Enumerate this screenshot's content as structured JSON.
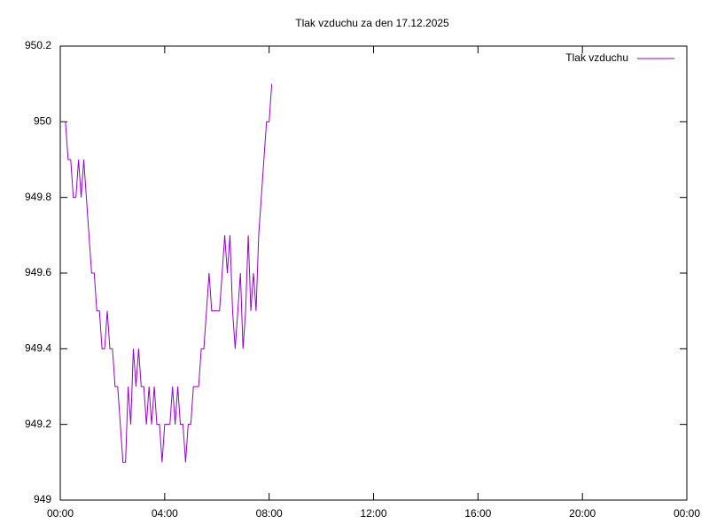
{
  "chart_data": {
    "type": "line",
    "title": "Tlak vzduchu za den 17.12.2025",
    "x": [
      0,
      0.1,
      0.2,
      0.3,
      0.4,
      0.5,
      0.6,
      0.7,
      0.8,
      0.9,
      1,
      1.1,
      1.2,
      1.3,
      1.4,
      1.5,
      1.6,
      1.7,
      1.8,
      1.9,
      2,
      2.1,
      2.2,
      2.3,
      2.4,
      2.5,
      2.6,
      2.7,
      2.8,
      2.9,
      3,
      3.1,
      3.2,
      3.3,
      3.4,
      3.5,
      3.6,
      3.7,
      3.8,
      3.9,
      4,
      4.1,
      4.2,
      4.3,
      4.4,
      4.5,
      4.6,
      4.7,
      4.8,
      4.9,
      5,
      5.1,
      5.2,
      5.3,
      5.4,
      5.5,
      5.6,
      5.7,
      5.8,
      5.9,
      6,
      6.1,
      6.2,
      6.3,
      6.4,
      6.5,
      6.6,
      6.7,
      6.8,
      6.9,
      7,
      7.1,
      7.2,
      7.3,
      7.4,
      7.5,
      7.6,
      7.7,
      7.8,
      7.9,
      8,
      8.1
    ],
    "series": [
      {
        "name": "Tlak vzduchu",
        "color": "#9400d3",
        "values": [
          950,
          950,
          950,
          949.9,
          949.9,
          949.8,
          949.8,
          949.9,
          949.8,
          949.9,
          949.8,
          949.7,
          949.6,
          949.6,
          949.5,
          949.5,
          949.4,
          949.4,
          949.5,
          949.4,
          949.4,
          949.3,
          949.3,
          949.2,
          949.1,
          949.1,
          949.3,
          949.2,
          949.4,
          949.3,
          949.4,
          949.3,
          949.3,
          949.2,
          949.3,
          949.2,
          949.3,
          949.2,
          949.2,
          949.1,
          949.2,
          949.2,
          949.2,
          949.3,
          949.2,
          949.3,
          949.2,
          949.2,
          949.1,
          949.2,
          949.2,
          949.3,
          949.3,
          949.3,
          949.4,
          949.4,
          949.5,
          949.6,
          949.5,
          949.5,
          949.5,
          949.5,
          949.6,
          949.7,
          949.6,
          949.7,
          949.5,
          949.4,
          949.5,
          949.6,
          949.4,
          949.5,
          949.7,
          949.5,
          949.6,
          949.5,
          949.7,
          949.8,
          949.9,
          950,
          950,
          950.1
        ]
      }
    ],
    "xlim": [
      0,
      24
    ],
    "xticks": [
      {
        "value": 0,
        "label": "00:00"
      },
      {
        "value": 4,
        "label": "04:00"
      },
      {
        "value": 8,
        "label": "08:00"
      },
      {
        "value": 12,
        "label": "12:00"
      },
      {
        "value": 16,
        "label": "16:00"
      },
      {
        "value": 20,
        "label": "20:00"
      },
      {
        "value": 24,
        "label": "00:00"
      }
    ],
    "ylim": [
      949,
      950.2
    ],
    "yticks": [
      949,
      949.2,
      949.4,
      949.6,
      949.8,
      950,
      950.2
    ],
    "grid": false,
    "legend": "top-right"
  }
}
